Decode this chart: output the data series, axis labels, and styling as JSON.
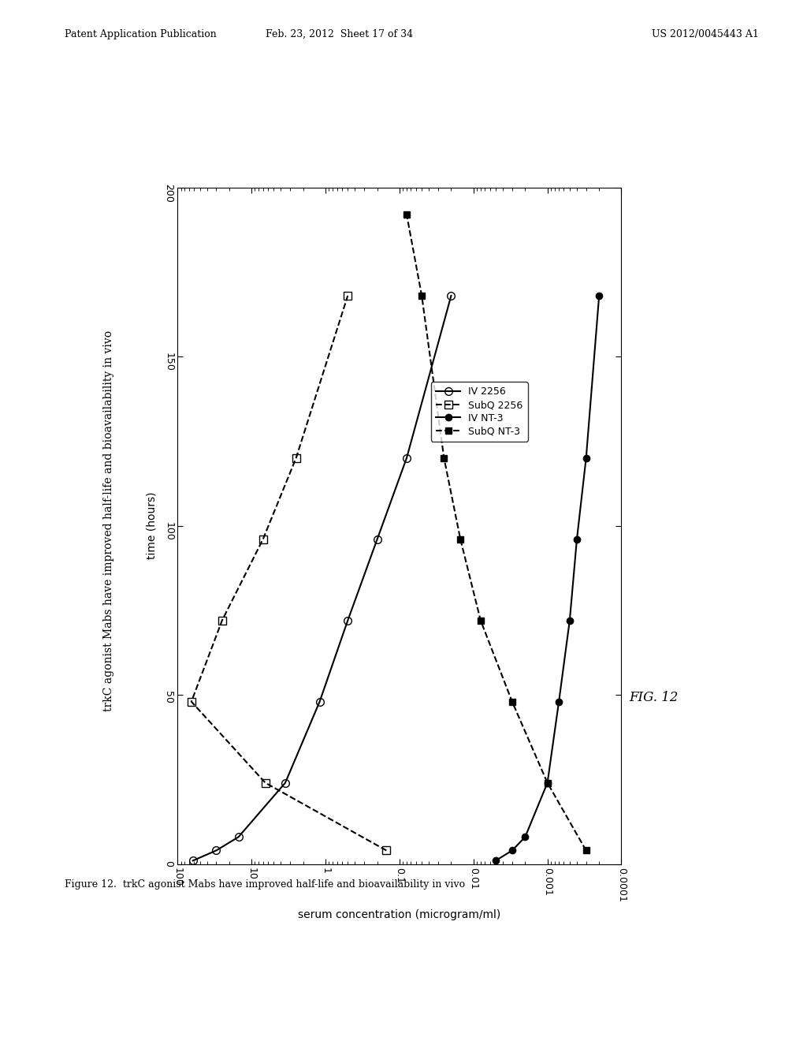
{
  "header_left": "Patent Application Publication",
  "header_center": "Feb. 23, 2012  Sheet 17 of 34",
  "header_right": "US 2012/0045443 A1",
  "fig_label": "FIG. 12",
  "figure_caption": "Figure 12.  trkC agonist Mabs have improved half-life and bioavailability in vivo",
  "rotated_title": "trkC agonist Mabs have improved half-life and bioavailability in vivo",
  "xlabel_rotated": "serum concentration (microgram/ml)",
  "ylabel_rotated": "time (hours)",
  "xmin": 0.0001,
  "xmax": 100,
  "ymin": 0,
  "ymax": 200,
  "yticks": [
    0,
    50,
    100,
    150,
    200
  ],
  "xticks": [
    100,
    10,
    1,
    0.1,
    0.01,
    0.001,
    0.0001
  ],
  "xtick_labels": [
    "100",
    "10",
    "1",
    "0.1",
    "0.01",
    "0.001",
    "0.0001"
  ],
  "series": {
    "IV_2256": {
      "label": "IV 2256",
      "y": [
        1,
        4,
        8,
        24,
        48,
        72,
        96,
        120,
        168
      ],
      "x": [
        62,
        30,
        15,
        3.5,
        1.2,
        0.5,
        0.2,
        0.08,
        0.02
      ],
      "marker": "o",
      "linestyle": "-",
      "color": "black",
      "filled": false,
      "linewidth": 1.5,
      "markersize": 7
    },
    "SubQ_2256": {
      "label": "SubQ 2256",
      "y": [
        4,
        24,
        48,
        72,
        96,
        120,
        168
      ],
      "x": [
        0.15,
        6.5,
        65,
        25,
        7,
        2.5,
        0.5
      ],
      "marker": "s",
      "linestyle": "--",
      "color": "black",
      "filled": false,
      "linewidth": 1.5,
      "markersize": 7
    },
    "IV_NT3": {
      "label": "IV NT-3",
      "y": [
        1,
        4,
        8,
        24,
        48,
        72,
        96,
        120,
        168
      ],
      "x": [
        0.005,
        0.003,
        0.002,
        0.001,
        0.0007,
        0.0005,
        0.0004,
        0.0003,
        0.0002
      ],
      "marker": "o",
      "linestyle": "-",
      "color": "black",
      "filled": true,
      "linewidth": 1.5,
      "markersize": 6
    },
    "SubQ_NT3": {
      "label": "SubQ NT-3",
      "y": [
        4,
        24,
        48,
        72,
        96,
        120,
        168,
        192
      ],
      "x": [
        0.0003,
        0.001,
        0.003,
        0.008,
        0.015,
        0.025,
        0.05,
        0.08
      ],
      "marker": "s",
      "linestyle": "--",
      "color": "black",
      "filled": true,
      "linewidth": 1.5,
      "markersize": 6
    }
  },
  "background": "white"
}
